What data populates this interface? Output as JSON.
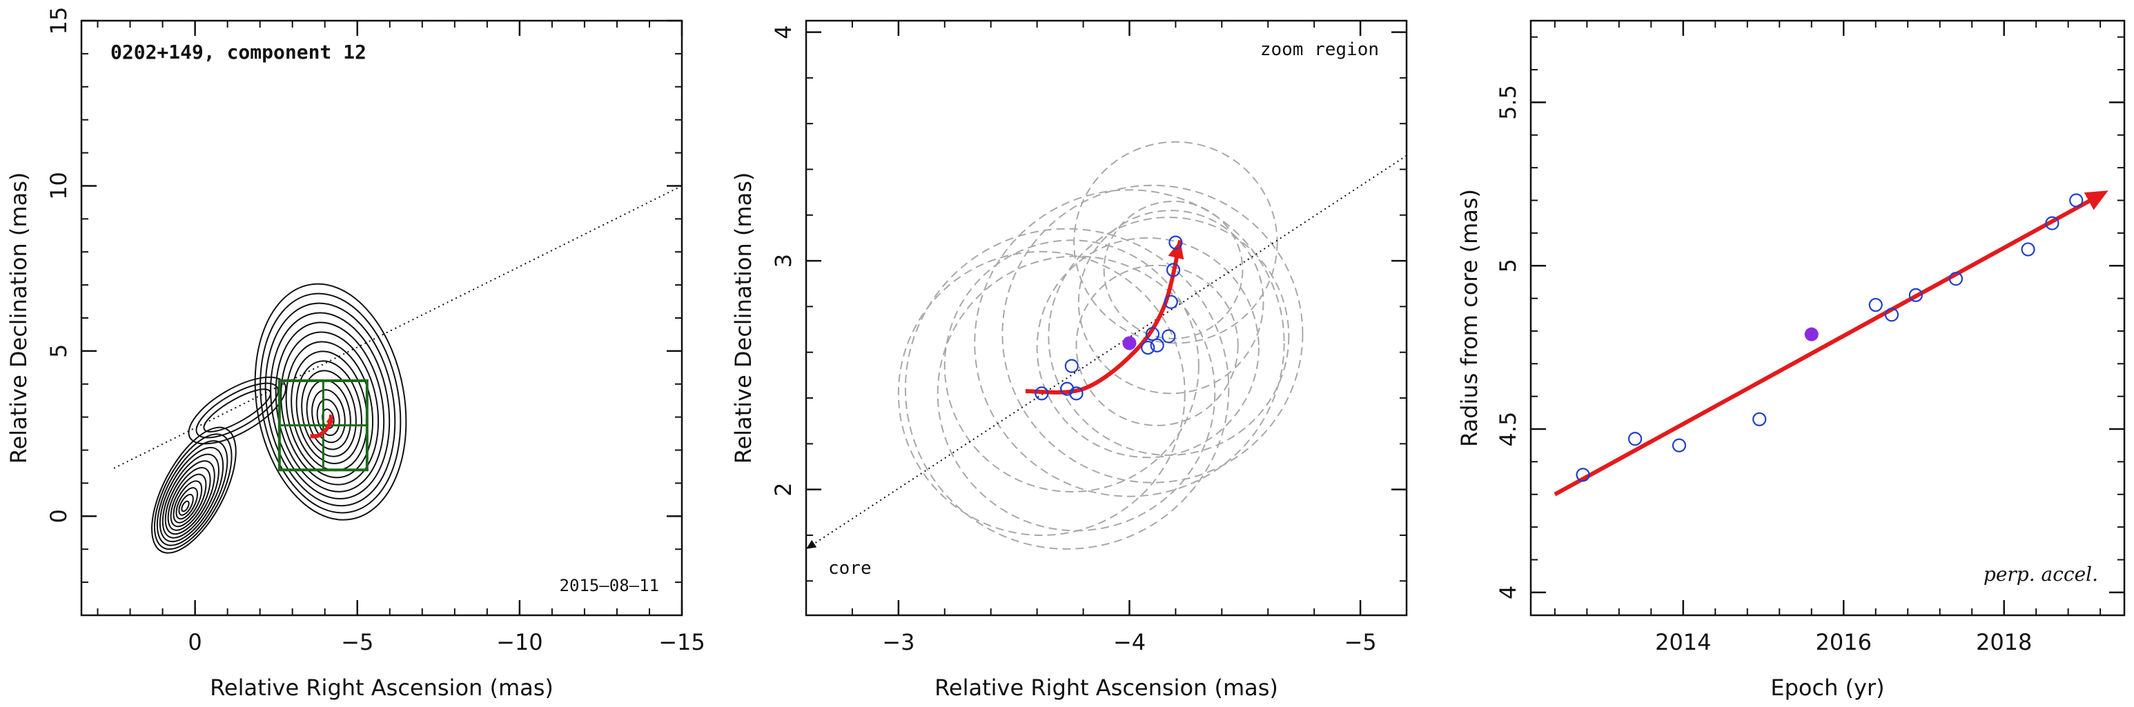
{
  "colors": {
    "axis": "#111111",
    "contour": "#111111",
    "box": "#1a6b1a",
    "fit": "#e31a1c",
    "points": "#1f3fd0",
    "highlight": "#8a2be2",
    "ellipse": "#a8a8a8"
  },
  "chart_data": [
    {
      "type": "contour",
      "title": "0202+149, component 12",
      "annotation": "2015–08–11",
      "xlabel": "Relative Right Ascension (mas)",
      "ylabel": "Relative Declination (mas)",
      "xlim": [
        3.5,
        -15
      ],
      "ylim": [
        -3,
        15
      ],
      "xticks": [
        0,
        -5,
        -10,
        -15
      ],
      "yticks": [
        0,
        5,
        10,
        15
      ],
      "xtick_labels": [
        "0",
        "−5",
        "−10",
        "−15"
      ],
      "ytick_labels": [
        "0",
        "5",
        "10",
        "15"
      ],
      "core": [
        0.3,
        0.3
      ],
      "component_center": [
        -4.1,
        2.95
      ],
      "jet_direction_line": {
        "from": [
          2.5,
          1.45
        ],
        "to": [
          -15,
          10.0
        ]
      },
      "zoom_box": {
        "x": [
          -2.6,
          -5.3
        ],
        "y": [
          1.4,
          4.1
        ]
      },
      "track": [
        [
          -3.55,
          2.42
        ],
        [
          -3.8,
          2.44
        ],
        [
          -4.02,
          2.6
        ],
        [
          -4.15,
          2.8
        ],
        [
          -4.2,
          3.07
        ]
      ]
    },
    {
      "type": "scatter",
      "annotation_top": "zoom region",
      "annotation_bottom": "core",
      "xlabel": "Relative Right Ascension (mas)",
      "ylabel": "Relative Declination (mas)",
      "xlim": [
        -2.6,
        -5.2
      ],
      "ylim": [
        1.45,
        4.05
      ],
      "xticks": [
        -3,
        -4,
        -5
      ],
      "yticks": [
        2,
        3,
        4
      ],
      "xtick_labels": [
        "−3",
        "−4",
        "−5"
      ],
      "ytick_labels": [
        "2",
        "3",
        "4"
      ],
      "jet_direction_line": {
        "from": [
          -5.2,
          3.46
        ],
        "to": [
          -2.6,
          1.74
        ]
      },
      "points": [
        [
          -3.62,
          2.42
        ],
        [
          -3.73,
          2.44
        ],
        [
          -3.75,
          2.54
        ],
        [
          -3.77,
          2.42
        ],
        [
          -4.08,
          2.62
        ],
        [
          -4.1,
          2.68
        ],
        [
          -4.12,
          2.63
        ],
        [
          -4.17,
          2.67
        ],
        [
          -4.18,
          2.82
        ],
        [
          -4.19,
          2.96
        ],
        [
          -4.2,
          3.08
        ]
      ],
      "highlight_point": [
        -4.0,
        2.64
      ],
      "ellipse_radii": [
        0.62,
        0.7,
        0.55,
        0.6,
        0.48,
        0.65,
        0.35,
        0.52,
        0.4,
        0.3,
        0.44,
        0.67
      ],
      "track": [
        [
          -3.55,
          2.43
        ],
        [
          -3.8,
          2.44
        ],
        [
          -4.02,
          2.6
        ],
        [
          -4.15,
          2.8
        ],
        [
          -4.22,
          3.09
        ]
      ]
    },
    {
      "type": "scatter",
      "annotation": "perp. accel.",
      "xlabel": "Epoch (yr)",
      "ylabel": "Radius from core (mas)",
      "xlim": [
        2012.1,
        2019.5
      ],
      "ylim": [
        3.93,
        5.75
      ],
      "xticks": [
        2014,
        2016,
        2018
      ],
      "yticks": [
        4,
        4.5,
        5,
        5.5
      ],
      "xtick_labels": [
        "2014",
        "2016",
        "2018"
      ],
      "ytick_labels": [
        "4",
        "4.5",
        "5",
        "5.5"
      ],
      "points": [
        [
          2012.75,
          4.36
        ],
        [
          2013.4,
          4.47
        ],
        [
          2013.95,
          4.45
        ],
        [
          2014.95,
          4.53
        ],
        [
          2016.4,
          4.88
        ],
        [
          2016.6,
          4.85
        ],
        [
          2016.9,
          4.91
        ],
        [
          2017.4,
          4.96
        ],
        [
          2018.3,
          5.05
        ],
        [
          2018.6,
          5.13
        ],
        [
          2018.9,
          5.2
        ]
      ],
      "highlight_point": [
        2015.6,
        4.79
      ],
      "fit_line": [
        [
          2012.4,
          4.3
        ],
        [
          2019.3,
          5.23
        ]
      ]
    }
  ]
}
